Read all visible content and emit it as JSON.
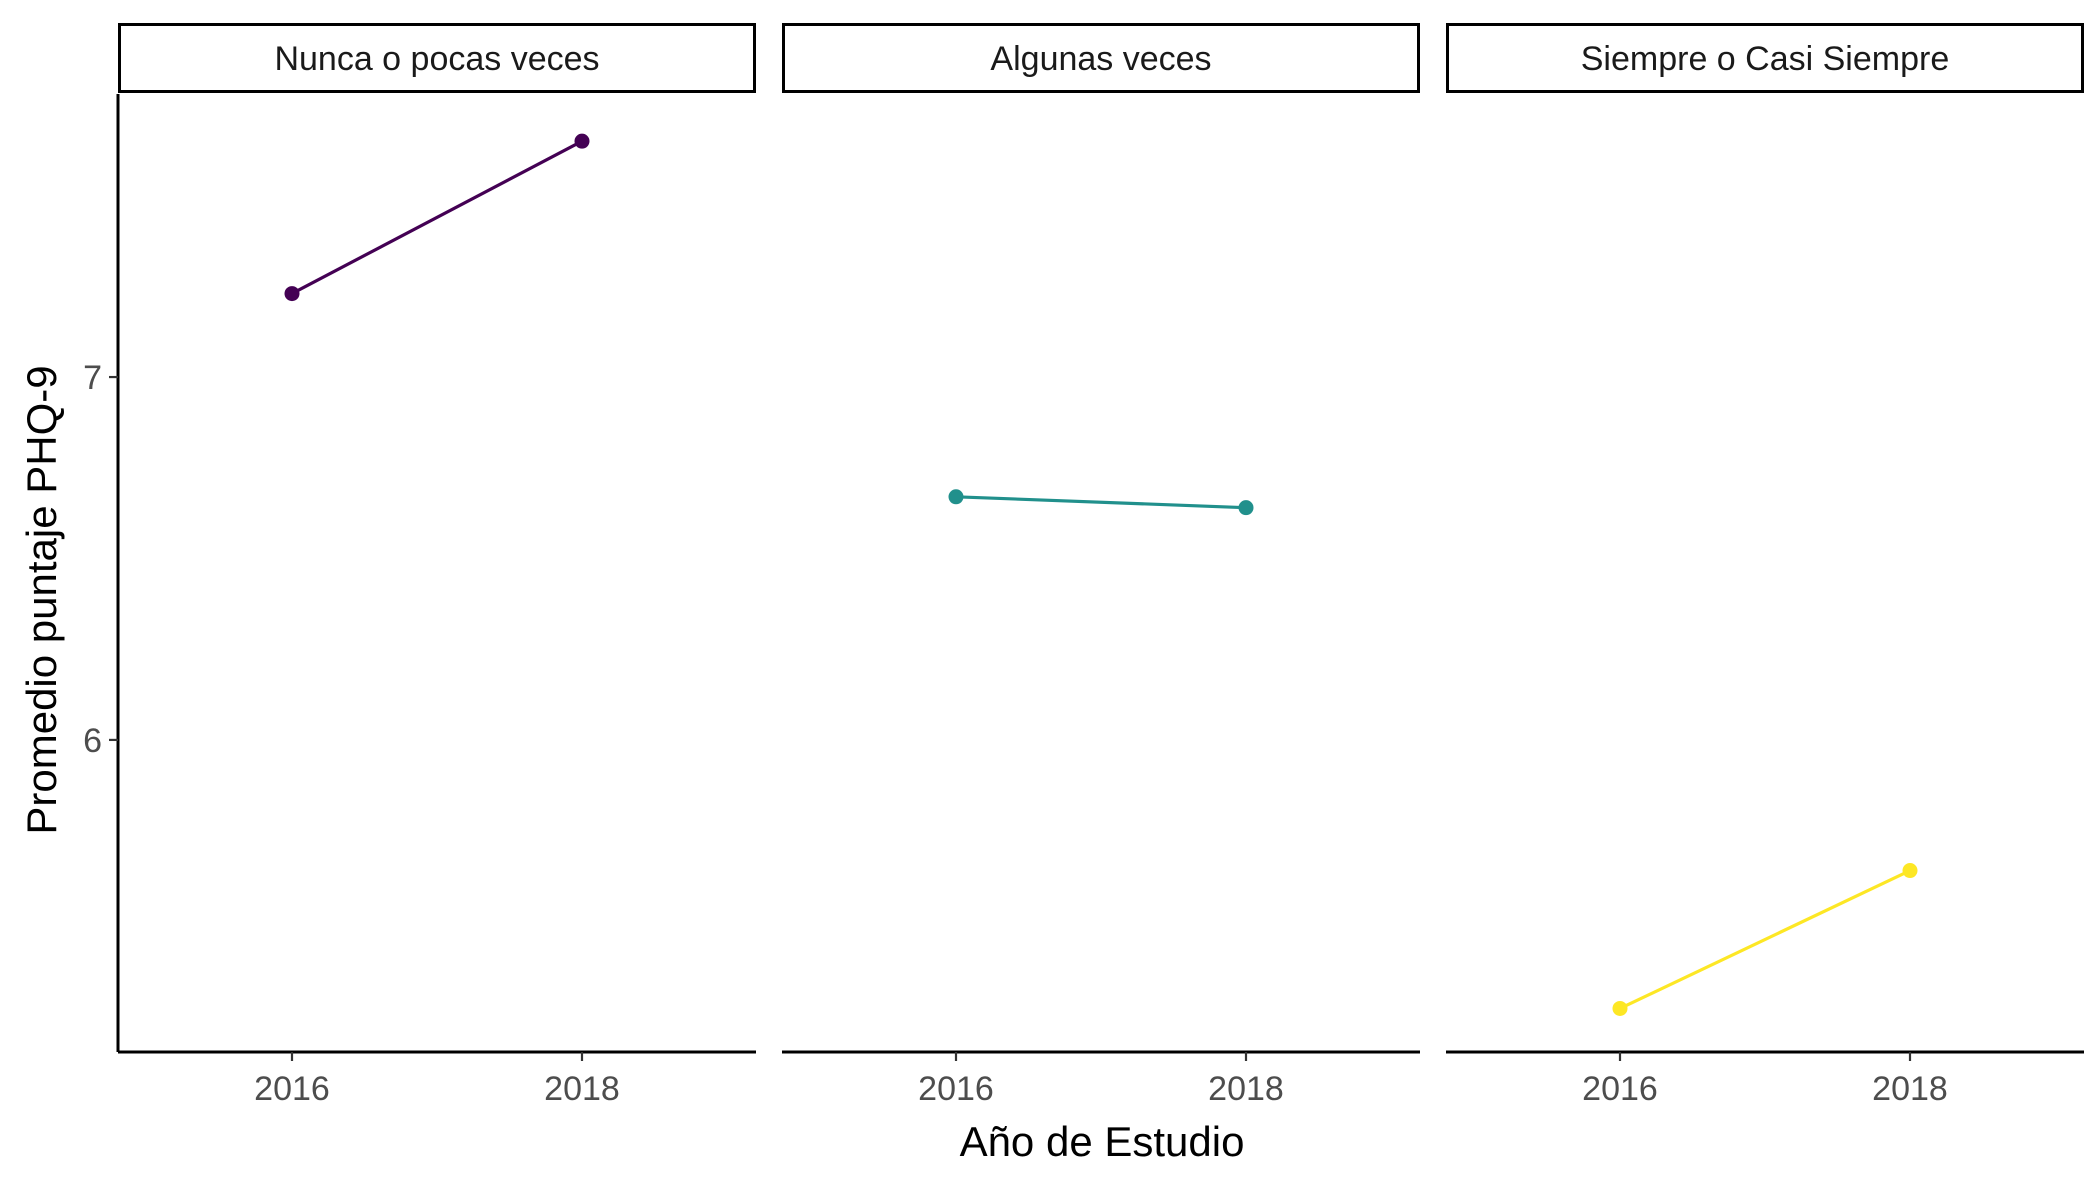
{
  "chart_data": {
    "type": "line",
    "title": "",
    "xlabel": "Año de Estudio",
    "ylabel": "Promedio puntaje PHQ-9",
    "x_ticks": [
      2016,
      2018
    ],
    "y_ticks": [
      6,
      7
    ],
    "xlim": [
      2014.8,
      2019.2
    ],
    "ylim": [
      5.14,
      7.78
    ],
    "grid": false,
    "legend": "none",
    "facets": [
      {
        "label": "Nunca o pocas veces",
        "color": "#440154",
        "points": [
          {
            "x": 2016,
            "y": 7.23
          },
          {
            "x": 2018,
            "y": 7.65
          }
        ]
      },
      {
        "label": "Algunas veces",
        "color": "#21908C",
        "points": [
          {
            "x": 2016,
            "y": 6.67
          },
          {
            "x": 2018,
            "y": 6.64
          }
        ]
      },
      {
        "label": "Siempre o Casi Siempre",
        "color": "#FDE725",
        "points": [
          {
            "x": 2016,
            "y": 5.26
          },
          {
            "x": 2018,
            "y": 5.64
          }
        ]
      }
    ]
  }
}
